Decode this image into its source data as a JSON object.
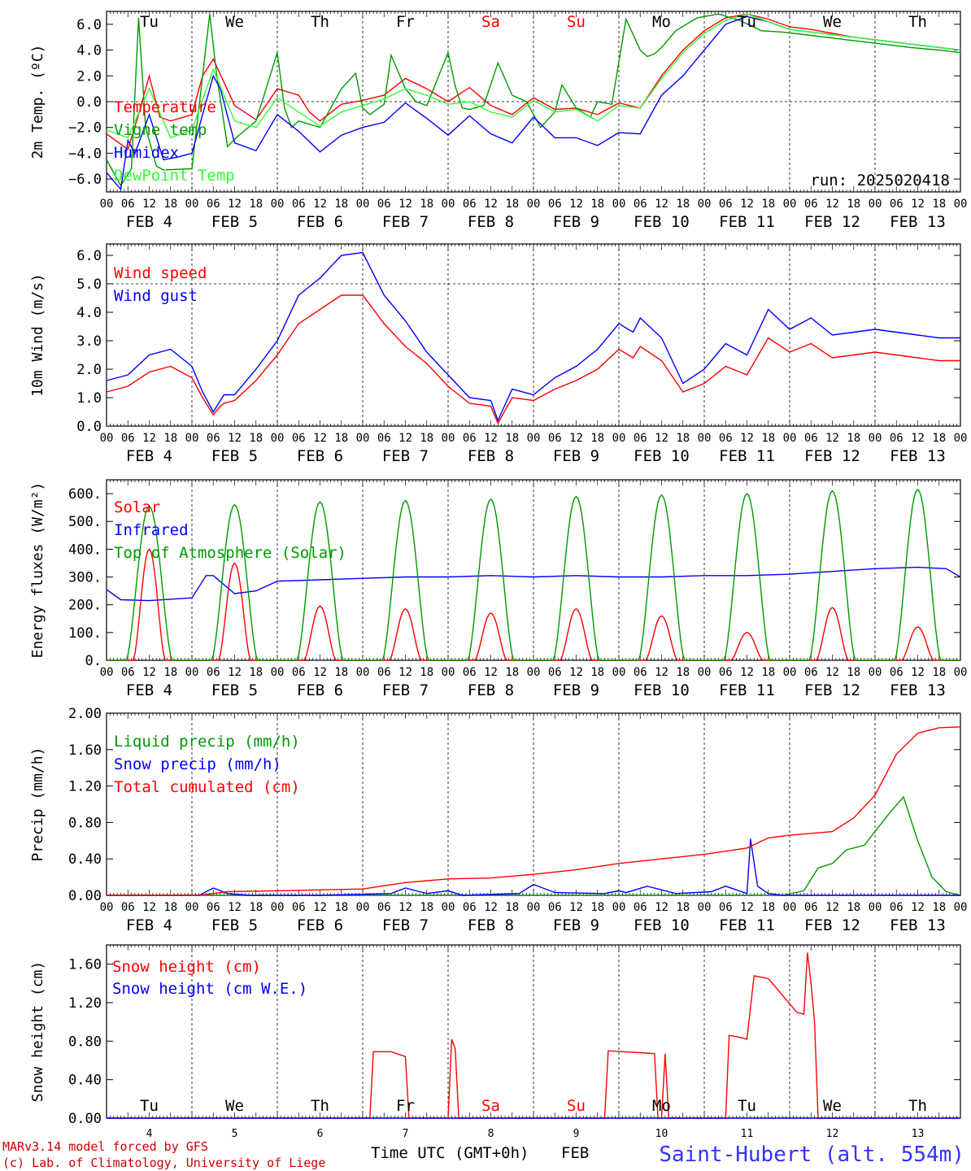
{
  "run": "run: 2025020418",
  "credits": [
    "MARv3.14 model forced by GFS",
    "(c) Lab. of Climatology, University of Liege"
  ],
  "xlabel": "Time UTC (GMT+0h)",
  "month_label": "FEB",
  "station": "Saint-Hubert (alt. 554m)",
  "hour_ticks": [
    "00",
    "06",
    "12",
    "18"
  ],
  "date_labels": [
    "FEB  4",
    "FEB  5",
    "FEB  6",
    "FEB  7",
    "FEB  8",
    "FEB  9",
    "FEB 10",
    "FEB 11",
    "FEB 12",
    "FEB 13"
  ],
  "day_numbers": [
    "4",
    "5",
    "6",
    "7",
    "8",
    "9",
    "10",
    "11",
    "12",
    "13"
  ],
  "weekdays": [
    "Tu",
    "We",
    "Th",
    "Fr",
    "Sa",
    "Su",
    "Mo",
    "Tu",
    "We",
    "Th"
  ],
  "weekend_days": [
    4,
    5
  ],
  "colors": {
    "red": "#ff0000",
    "green": "#009900",
    "blue": "#0000ff",
    "light_green": "#33ff33",
    "weekend": "#ff0000",
    "station": "#3333ff",
    "credit": "#cc0000"
  },
  "chart_data": [
    {
      "type": "line",
      "ylabel": "2m Temp. (ºC)",
      "ylim": [
        -7,
        7
      ],
      "yticks": [
        "6.0",
        "4.0",
        "2.0",
        "0.0",
        "−2.0",
        "−4.0",
        "−6.0"
      ],
      "reference_line": 0,
      "x_units": "hours since FEB 4 00 UTC",
      "series": [
        {
          "name": "Temperature",
          "color": "#ff0000",
          "x": [
            0,
            6,
            9,
            12,
            15,
            18,
            24,
            27,
            30,
            33,
            36,
            42,
            48,
            54,
            57,
            60,
            66,
            72,
            78,
            84,
            90,
            96,
            102,
            108,
            114,
            120,
            126,
            132,
            138,
            144,
            150,
            156,
            162,
            168,
            174,
            180,
            186,
            192,
            198,
            204,
            210,
            216,
            222,
            228,
            234,
            240
          ],
          "y": [
            -2.5,
            -3.7,
            -1.0,
            2.0,
            -1.2,
            -1.5,
            -1.0,
            2.0,
            3.3,
            1.5,
            -0.3,
            -1.4,
            1.0,
            0.5,
            -0.8,
            -1.5,
            -0.2,
            0.1,
            0.5,
            1.8,
            1.0,
            0.0,
            1.1,
            -0.3,
            -1.0,
            0.3,
            -0.6,
            -0.5,
            -1.0,
            -0.1,
            -0.5,
            2.0,
            4.0,
            5.5,
            6.5,
            6.8,
            6.4,
            5.8,
            5.6,
            5.3,
            5.0,
            4.8,
            4.6,
            4.4,
            4.2,
            4.0
          ]
        },
        {
          "name": "Vigne temp",
          "color": "#009900",
          "x": [
            0,
            4,
            7,
            9,
            11,
            14,
            16,
            24,
            27,
            29,
            31,
            34,
            36,
            42,
            48,
            50,
            52,
            54,
            60,
            66,
            70,
            72,
            74,
            78,
            80,
            84,
            87,
            90,
            96,
            98,
            100,
            102,
            106,
            110,
            114,
            118,
            122,
            126,
            128,
            132,
            136,
            138,
            142,
            146,
            150,
            152,
            154,
            156,
            160,
            166,
            172,
            178,
            184,
            190,
            196,
            202,
            208,
            214,
            220,
            226,
            234,
            240
          ],
          "y": [
            -4.5,
            -6.5,
            -5.2,
            6.5,
            -2.0,
            -5.0,
            -5.3,
            -5.2,
            2.0,
            6.8,
            2.0,
            -3.5,
            -2.9,
            -1.5,
            3.8,
            -0.5,
            -2.0,
            -1.5,
            -2.0,
            1.0,
            2.2,
            -0.5,
            -1.0,
            -0.2,
            3.6,
            1.0,
            0.0,
            -0.3,
            3.8,
            1.2,
            -0.5,
            -0.6,
            -0.3,
            3.0,
            0.5,
            0.0,
            -2.0,
            -0.8,
            1.3,
            -0.5,
            -1.2,
            0.0,
            -0.2,
            6.4,
            4.0,
            3.5,
            3.7,
            4.2,
            5.5,
            6.5,
            6.8,
            6.3,
            5.5,
            5.4,
            5.2,
            5.0,
            4.8,
            4.6,
            4.4,
            4.2,
            4.0,
            3.8
          ]
        },
        {
          "name": "Humidex",
          "color": "#0000ff",
          "x": [
            0,
            4,
            6,
            8,
            12,
            16,
            20,
            24,
            28,
            30,
            32,
            36,
            42,
            48,
            54,
            60,
            66,
            72,
            78,
            84,
            90,
            96,
            102,
            108,
            114,
            120,
            126,
            132,
            138,
            144,
            150,
            156,
            162,
            168,
            174,
            180,
            186,
            192,
            198,
            204,
            210,
            216,
            222,
            228,
            234,
            240
          ],
          "y": [
            -5.5,
            -6.8,
            -3.0,
            -4.0,
            -1.0,
            -4.5,
            -4.3,
            -4.0,
            0.0,
            2.0,
            1.0,
            -3.2,
            -3.8,
            -1.0,
            -2.3,
            -3.9,
            -2.6,
            -2.0,
            -1.6,
            -0.1,
            -1.3,
            -2.6,
            -1.1,
            -2.5,
            -3.2,
            -1.2,
            -2.8,
            -2.8,
            -3.4,
            -2.4,
            -2.5,
            0.5,
            2.0,
            4.0,
            6.0,
            6.6,
            6.2,
            5.6,
            5.4,
            5.2,
            5.0,
            4.8,
            4.6,
            4.4,
            4.2,
            4.0
          ]
        },
        {
          "name": "DewPoint Temp",
          "color": "#33ff33",
          "x": [
            0,
            6,
            12,
            18,
            24,
            30,
            36,
            42,
            48,
            54,
            60,
            66,
            72,
            78,
            84,
            90,
            96,
            102,
            108,
            114,
            120,
            126,
            132,
            138,
            144,
            150,
            156,
            162,
            168,
            174,
            180,
            186,
            192,
            198,
            204,
            210,
            216,
            222,
            228,
            234,
            240
          ],
          "y": [
            -2.2,
            -2.8,
            1.0,
            -2.8,
            -2.2,
            2.5,
            -1.5,
            -2.0,
            0.3,
            -0.8,
            -1.9,
            -0.8,
            -0.3,
            0.2,
            1.0,
            0.5,
            -0.2,
            0.0,
            -0.8,
            -1.2,
            0.1,
            -0.8,
            -0.6,
            -1.5,
            -0.3,
            -0.5,
            1.8,
            3.8,
            5.3,
            6.3,
            6.8,
            6.2,
            5.6,
            5.4,
            5.2,
            5.0,
            4.8,
            4.6,
            4.4,
            4.2,
            4.0
          ]
        }
      ]
    },
    {
      "type": "line",
      "ylabel": "10m Wind (m/s)",
      "ylim": [
        0,
        6.4
      ],
      "yticks": [
        "6.0",
        "5.0",
        "4.0",
        "3.0",
        "2.0",
        "1.0",
        "0.0"
      ],
      "reference_line": 5,
      "x_units": "hours since FEB 4 00 UTC",
      "series": [
        {
          "name": "Wind speed",
          "color": "#ff0000",
          "x": [
            0,
            6,
            12,
            18,
            24,
            27,
            30,
            32,
            33,
            36,
            42,
            48,
            54,
            60,
            66,
            72,
            78,
            84,
            90,
            96,
            102,
            108,
            110,
            114,
            120,
            126,
            132,
            138,
            144,
            148,
            150,
            156,
            162,
            168,
            174,
            180,
            186,
            192,
            198,
            204,
            210,
            216,
            222,
            228,
            234,
            240
          ],
          "y": [
            1.2,
            1.4,
            1.9,
            2.1,
            1.7,
            1.0,
            0.4,
            0.7,
            0.8,
            0.9,
            1.6,
            2.5,
            3.6,
            4.1,
            4.6,
            4.6,
            3.6,
            2.8,
            2.2,
            1.4,
            0.8,
            0.7,
            0.1,
            1.0,
            0.9,
            1.3,
            1.6,
            2.0,
            2.7,
            2.4,
            2.8,
            2.3,
            1.2,
            1.5,
            2.1,
            1.8,
            3.1,
            2.6,
            2.9,
            2.4,
            2.5,
            2.6,
            2.5,
            2.4,
            2.3,
            2.3
          ]
        },
        {
          "name": "Wind gust",
          "color": "#0000ff",
          "x": [
            0,
            6,
            12,
            18,
            24,
            27,
            30,
            32,
            33,
            36,
            42,
            48,
            54,
            60,
            66,
            72,
            78,
            84,
            90,
            96,
            102,
            108,
            110,
            114,
            120,
            126,
            132,
            138,
            144,
            148,
            150,
            156,
            162,
            168,
            174,
            180,
            186,
            192,
            198,
            204,
            210,
            216,
            222,
            228,
            234,
            240
          ],
          "y": [
            1.6,
            1.8,
            2.5,
            2.7,
            2.1,
            1.2,
            0.5,
            0.9,
            1.1,
            1.1,
            2.0,
            3.0,
            4.6,
            5.2,
            6.0,
            6.1,
            4.6,
            3.7,
            2.6,
            1.8,
            1.0,
            0.9,
            0.2,
            1.3,
            1.1,
            1.7,
            2.1,
            2.7,
            3.6,
            3.3,
            3.8,
            3.1,
            1.5,
            2.0,
            2.9,
            2.5,
            4.1,
            3.4,
            3.8,
            3.2,
            3.3,
            3.4,
            3.3,
            3.2,
            3.1,
            3.1
          ]
        }
      ]
    },
    {
      "type": "line",
      "ylabel": "Energy fluxes (W/m²)",
      "ylim": [
        0,
        650
      ],
      "yticks": [
        "600.",
        "500.",
        "400.",
        "300.",
        "200.",
        "100.",
        "0."
      ],
      "x_units": "hours since FEB 4 00 UTC",
      "series": [
        {
          "name": "Solar",
          "color": "#ff0000",
          "peak_hours": [
            12,
            36,
            60,
            84,
            108,
            132,
            156,
            180,
            204,
            228
          ],
          "peak_values": [
            400,
            350,
            195,
            185,
            170,
            185,
            160,
            100,
            190,
            120
          ]
        },
        {
          "name": "Infrared",
          "color": "#0000ff",
          "x": [
            0,
            4,
            12,
            24,
            28,
            30,
            36,
            42,
            48,
            60,
            72,
            84,
            96,
            108,
            120,
            132,
            144,
            156,
            168,
            180,
            192,
            204,
            216,
            228,
            236,
            240
          ],
          "y": [
            255,
            218,
            215,
            225,
            305,
            305,
            240,
            250,
            285,
            290,
            295,
            300,
            300,
            305,
            300,
            305,
            300,
            300,
            305,
            305,
            310,
            320,
            330,
            335,
            330,
            300
          ]
        },
        {
          "name": "Top of Atmosphere (Solar)",
          "color": "#009900",
          "peak_hours": [
            12,
            36,
            60,
            84,
            108,
            132,
            156,
            180,
            204,
            228
          ],
          "peak_values": [
            555,
            560,
            570,
            575,
            580,
            590,
            595,
            600,
            610,
            615
          ]
        }
      ]
    },
    {
      "type": "line",
      "ylabel": "Precip (mm/h)",
      "ylim": [
        0,
        2.0
      ],
      "yticks": [
        "2.00",
        "1.60",
        "1.20",
        "0.80",
        "0.40",
        "0.00"
      ],
      "x_units": "hours since FEB 4 00 UTC",
      "series": [
        {
          "name": "Liquid precip (mm/h)",
          "color": "#009900",
          "x": [
            0,
            190,
            196,
            200,
            204,
            208,
            213,
            216,
            220,
            224,
            228,
            232,
            236,
            240
          ],
          "y": [
            0,
            0,
            0.05,
            0.3,
            0.35,
            0.5,
            0.55,
            0.7,
            0.9,
            1.08,
            0.6,
            0.2,
            0.04,
            0.0
          ]
        },
        {
          "name": "Snow precip (mm/h)",
          "color": "#0000ff",
          "x": [
            0,
            26,
            30,
            34,
            40,
            60,
            80,
            84,
            90,
            96,
            100,
            116,
            120,
            126,
            140,
            144,
            146,
            152,
            160,
            170,
            174,
            180,
            181,
            183,
            186,
            190,
            200,
            240
          ],
          "y": [
            0,
            0,
            0.08,
            0.02,
            0,
            0,
            0.02,
            0.08,
            0.02,
            0.05,
            0,
            0.02,
            0.12,
            0.03,
            0.02,
            0.05,
            0.03,
            0.1,
            0.02,
            0.04,
            0.1,
            0.02,
            0.62,
            0.1,
            0.02,
            0,
            0,
            0
          ]
        },
        {
          "name": "Total cumulated (cm)",
          "color": "#ff0000",
          "x": [
            0,
            26,
            34,
            48,
            72,
            84,
            96,
            108,
            120,
            132,
            144,
            156,
            168,
            180,
            186,
            192,
            204,
            210,
            216,
            222,
            228,
            234,
            240
          ],
          "y": [
            0,
            0,
            0.04,
            0.05,
            0.07,
            0.14,
            0.18,
            0.19,
            0.23,
            0.28,
            0.35,
            0.4,
            0.45,
            0.52,
            0.63,
            0.66,
            0.7,
            0.85,
            1.1,
            1.55,
            1.78,
            1.84,
            1.85
          ]
        }
      ]
    },
    {
      "type": "line",
      "ylabel": "Snow height (cm)",
      "ylim": [
        0,
        1.8
      ],
      "yticks": [
        "1.60",
        "1.20",
        "0.80",
        "0.40",
        "0.00"
      ],
      "x_units": "hours since FEB 4 00 UTC",
      "series": [
        {
          "name": "Snow height (cm)",
          "color": "#ff0000",
          "x": [
            0,
            74,
            75,
            80,
            84,
            85,
            95,
            96,
            97,
            98,
            99,
            100,
            101,
            140,
            141,
            150,
            154,
            155,
            156,
            157,
            158,
            174,
            175,
            178,
            180,
            182,
            186,
            194,
            196,
            197,
            198,
            199,
            200,
            201,
            240
          ],
          "y": [
            0,
            0,
            0.69,
            0.69,
            0.64,
            0,
            0,
            0,
            0.82,
            0.72,
            0,
            0,
            0,
            0,
            0.7,
            0.68,
            0.67,
            0,
            0,
            0.67,
            0,
            0,
            0.86,
            0.84,
            0.82,
            1.48,
            1.45,
            1.1,
            1.08,
            1.72,
            1.4,
            1.0,
            0,
            0,
            0
          ]
        },
        {
          "name": "Snow height (cm W.E.)",
          "color": "#0000ff",
          "x": [
            0,
            240
          ],
          "y": [
            0,
            0
          ]
        }
      ]
    }
  ]
}
